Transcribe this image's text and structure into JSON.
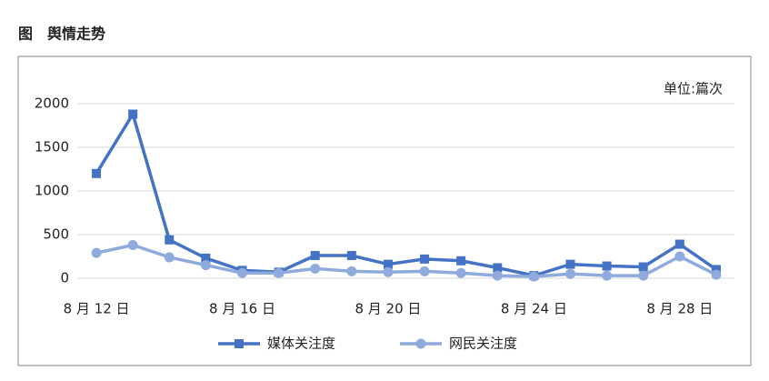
{
  "title": "图　舆情走势",
  "chart_data": {
    "type": "line",
    "unit_note": "单位:篇次",
    "categories": [
      "8 月 12 日",
      null,
      null,
      null,
      "8 月 16 日",
      null,
      null,
      null,
      "8 月 20 日",
      null,
      null,
      null,
      "8 月 24 日",
      null,
      null,
      null,
      "8 月 28 日",
      null
    ],
    "series": [
      {
        "name": "媒体关注度",
        "color": "#4472c4",
        "marker": "square",
        "values": [
          1200,
          1880,
          440,
          230,
          90,
          70,
          260,
          260,
          160,
          220,
          200,
          120,
          30,
          160,
          140,
          130,
          390,
          100
        ]
      },
      {
        "name": "网民关注度",
        "color": "#8faadc",
        "marker": "circle",
        "values": [
          290,
          380,
          240,
          150,
          60,
          60,
          110,
          80,
          70,
          80,
          60,
          30,
          20,
          50,
          30,
          30,
          250,
          40
        ]
      }
    ],
    "ylim": [
      0,
      2000
    ],
    "yticks": [
      0,
      500,
      1000,
      1500,
      2000
    ],
    "grid": true,
    "legend": "bottom"
  }
}
